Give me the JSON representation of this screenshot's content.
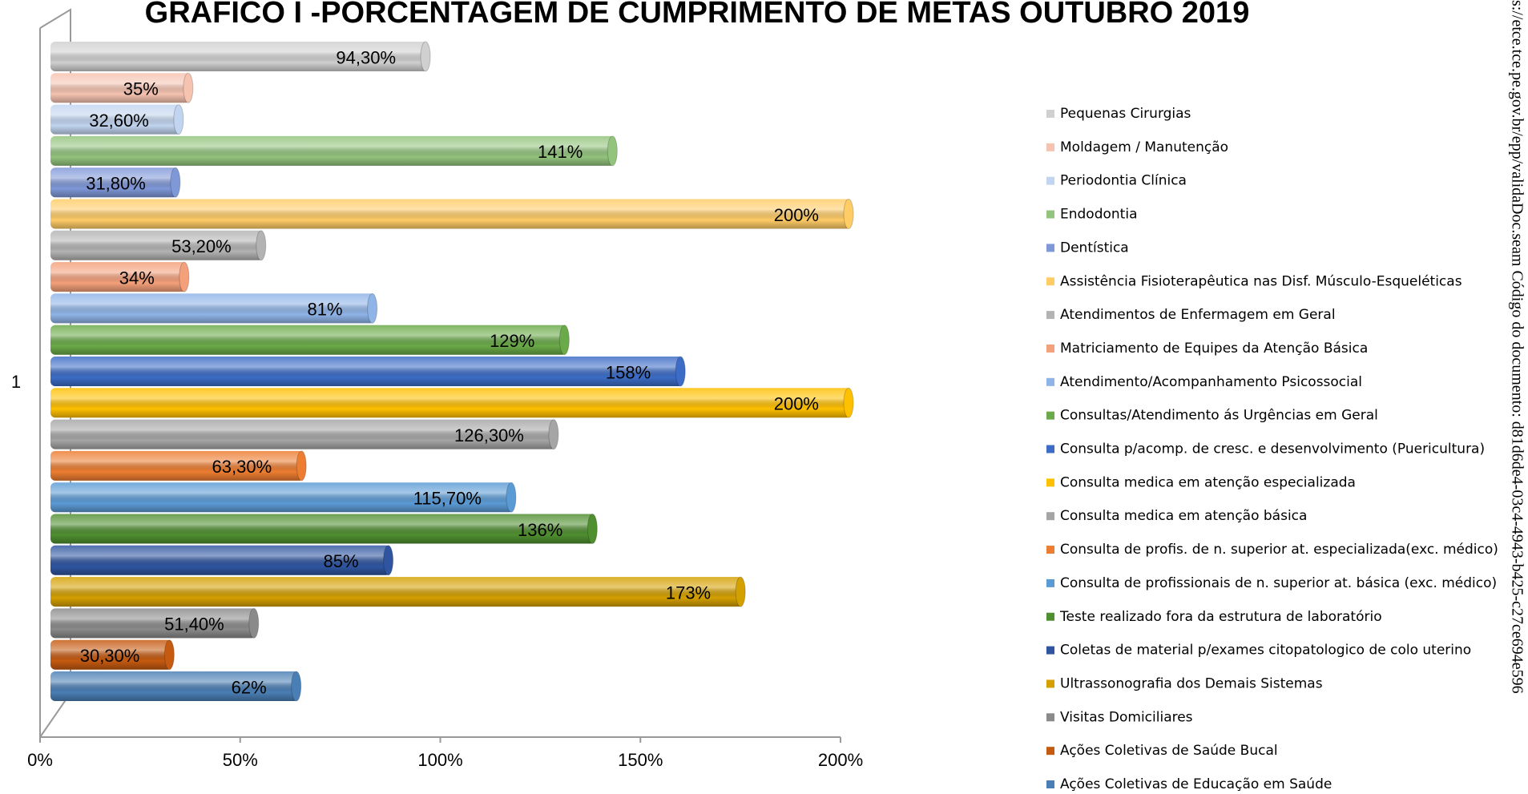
{
  "chart_data": {
    "type": "bar",
    "orientation": "horizontal",
    "title": "GRAFICO I -PORCENTAGEM DE CUMPRIMENTO DE METAS  OUTUBRO 2019",
    "watermark": "s://etce.tce.pe.gov.br/epp/validaDoc.seam Código do documento: d81d6de4-03c4-4943-b425-c27ce694e596",
    "categories": [
      "1"
    ],
    "xlim": [
      0,
      200
    ],
    "xticks": [
      {
        "value": 0,
        "label": "0%"
      },
      {
        "value": 50,
        "label": "50%"
      },
      {
        "value": 100,
        "label": "100%"
      },
      {
        "value": 150,
        "label": "150%"
      },
      {
        "value": 200,
        "label": "200%"
      }
    ],
    "legend": "right",
    "series": [
      {
        "name": "Pequenas Cirurgias",
        "color": "#d0d0d0",
        "values": [
          94.3
        ],
        "value_labels": [
          "94,30%"
        ]
      },
      {
        "name": "Moldagem / Manutenção",
        "color": "#f6c3b1",
        "values": [
          35
        ],
        "value_labels": [
          "35%"
        ]
      },
      {
        "name": "Periodontia Clínica",
        "color": "#c2d5f0",
        "values": [
          32.6
        ],
        "value_labels": [
          "32,60%"
        ]
      },
      {
        "name": "Endodontia",
        "color": "#93c47d",
        "values": [
          141
        ],
        "value_labels": [
          "141%"
        ]
      },
      {
        "name": "Dentística",
        "color": "#7f98d8",
        "values": [
          31.8
        ],
        "value_labels": [
          "31,80%"
        ]
      },
      {
        "name": "Assistência Fisioterapêutica nas Disf. Músculo-Esqueléticas",
        "color": "#ffcc66",
        "values": [
          200
        ],
        "value_labels": [
          "200%"
        ]
      },
      {
        "name": "Atendimentos de Enfermagem em Geral",
        "color": "#b3b3b3",
        "values": [
          53.2
        ],
        "value_labels": [
          "53,20%"
        ]
      },
      {
        "name": "Matriciamento de Equipes da Atenção Básica",
        "color": "#f4a07a",
        "values": [
          34
        ],
        "value_labels": [
          "34%"
        ]
      },
      {
        "name": "Atendimento/Acompanhamento Psicossocial",
        "color": "#8fb4e8",
        "values": [
          81
        ],
        "value_labels": [
          "81%"
        ]
      },
      {
        "name": "Consultas/Atendimento ás Urgências em Geral",
        "color": "#6aaa48",
        "values": [
          129
        ],
        "value_labels": [
          "129%"
        ]
      },
      {
        "name": "Consulta p/acomp. de cresc. e desenvolvimento (Puericultura)",
        "color": "#3c6cc6",
        "values": [
          158
        ],
        "value_labels": [
          "158%"
        ]
      },
      {
        "name": "Consulta medica em atenção especializada",
        "color": "#ffc000",
        "values": [
          200
        ],
        "value_labels": [
          "200%"
        ]
      },
      {
        "name": "Consulta medica em atenção básica",
        "color": "#a5a5a5",
        "values": [
          126.3
        ],
        "value_labels": [
          "126,30%"
        ]
      },
      {
        "name": "Consulta de profis. de n. superior at. especializada(exc. médico)",
        "color": "#ed7d31",
        "values": [
          63.3
        ],
        "value_labels": [
          "63,30%"
        ]
      },
      {
        "name": "Consulta de profissionais de n. superior at. básica (exc. médico)",
        "color": "#5b9bd5",
        "values": [
          115.7
        ],
        "value_labels": [
          "115,70%"
        ]
      },
      {
        "name": "Teste realizado fora da estrutura de laboratório",
        "color": "#4f8f30",
        "values": [
          136
        ],
        "value_labels": [
          "136%"
        ]
      },
      {
        "name": "Coletas de material p/exames citopatologico de colo uterino",
        "color": "#2f55a0",
        "values": [
          85
        ],
        "value_labels": [
          "85%"
        ]
      },
      {
        "name": "Ultrassonografia dos Demais Sistemas",
        "color": "#d4a000",
        "values": [
          173
        ],
        "value_labels": [
          "173%"
        ]
      },
      {
        "name": "Visitas Domiciliares",
        "color": "#8a8a8a",
        "values": [
          51.4
        ],
        "value_labels": [
          "51,40%"
        ]
      },
      {
        "name": "Ações Coletivas de Saúde Bucal",
        "color": "#c55a11",
        "values": [
          30.3
        ],
        "value_labels": [
          "30,30%"
        ]
      },
      {
        "name": "Ações Coletivas de Educação em Saúde",
        "color": "#4a7fb5",
        "values": [
          62
        ],
        "value_labels": [
          "62%"
        ]
      }
    ]
  }
}
